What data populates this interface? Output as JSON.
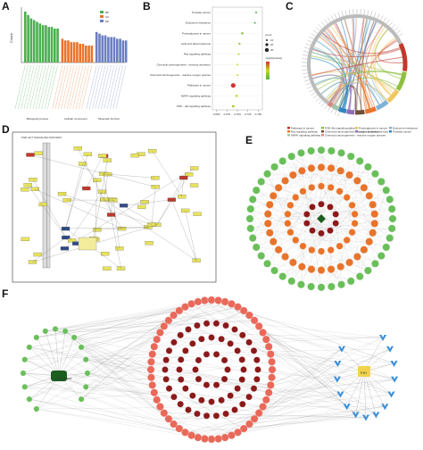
{
  "panels": {
    "a": {
      "letter": "A"
    },
    "b": {
      "letter": "B"
    },
    "c": {
      "letter": "C"
    },
    "d": {
      "letter": "D"
    },
    "e": {
      "letter": "E"
    },
    "f": {
      "letter": "F"
    }
  },
  "panel_a": {
    "y_label": "Count",
    "legend": [
      "BP",
      "CC",
      "MF"
    ],
    "group_labels": [
      "Biological process",
      "Cellular component",
      "Molecular function"
    ],
    "colors": {
      "BP": "#4caf50",
      "CC": "#e8742b",
      "MF": "#6b7fc0"
    },
    "bars": {
      "BP": [
        30,
        28,
        26,
        25,
        24,
        23,
        22,
        22,
        21,
        21,
        20,
        20
      ],
      "CC": [
        14,
        13,
        13,
        12,
        12,
        12,
        11,
        11,
        10,
        10,
        10
      ],
      "MF": [
        18,
        17,
        16,
        16,
        15,
        15,
        15,
        14,
        14,
        13,
        13
      ]
    }
  },
  "panel_b": {
    "pathways": [
      "Prostate cancer",
      "Endocrine resistance",
      "Proteoglycans in cancer",
      "Lipid and atherosclerosis",
      "Ras signaling pathway",
      "Chemical carcinogenesis - receptor activation",
      "Chemical carcinogenesis - reactive oxygen species",
      "Pathways in cancer",
      "MAPK signaling pathway",
      "PI3K - Akt signaling pathway"
    ],
    "x_ticks": [
      "0.650",
      "0.675",
      "0.700",
      "0.725",
      "0.750"
    ],
    "legend_title_count": "count",
    "legend_counts": [
      "10",
      "20",
      "30"
    ],
    "legend_title_p": "-log10(pvalue)",
    "colors": {
      "high": "#d32f2f",
      "mid": "#c6d92b",
      "low": "#4caf50"
    }
  },
  "panel_c": {
    "legend": [
      {
        "label": "Pathways in cancer",
        "color": "#c0392b"
      },
      {
        "label": "PI3K-Akt signaling pathway",
        "color": "#8fbf3f"
      },
      {
        "label": "Proteoglycans in cancer",
        "color": "#f0c75e"
      },
      {
        "label": "Endocrine resistance",
        "color": "#7fb3d5"
      },
      {
        "label": "Ras signaling pathway",
        "color": "#e8742b"
      },
      {
        "label": "Chemical carcinogenesis - receptor activation",
        "color": "#6f4e37"
      },
      {
        "label": "Lipid and atherosclerosis",
        "color": "#8e6fb5"
      },
      {
        "label": "Prostate cancer",
        "color": "#2e86c1"
      },
      {
        "label": "MAPK signaling pathway",
        "color": "#a3c4a8"
      },
      {
        "label": "Chemical carcinogenesis - reactive oxygen species",
        "color": "#d98880"
      }
    ]
  },
  "panel_d": {
    "title": "PI3K-AKT SIGNALING PATHWAY",
    "colors": {
      "gene_box": "#e8e35a",
      "hit_box": "#c0392b",
      "blue_box": "#2e4a8a"
    }
  },
  "panel_e": {
    "colors": {
      "outer": "#6abf5a",
      "mid": "#e8742b",
      "inner": "#c0392b",
      "core": "#8b1a1a",
      "center": "#1b5e20"
    }
  },
  "panel_f": {
    "left_hub": "AC Inject",
    "right_hub": "PIH",
    "colors": {
      "green": "#6abf5a",
      "red": "#c0392b",
      "dark_red": "#8b1a1a",
      "light_red": "#e8695a",
      "blue": "#3a8fd9",
      "yellow": "#f0d34a"
    }
  }
}
